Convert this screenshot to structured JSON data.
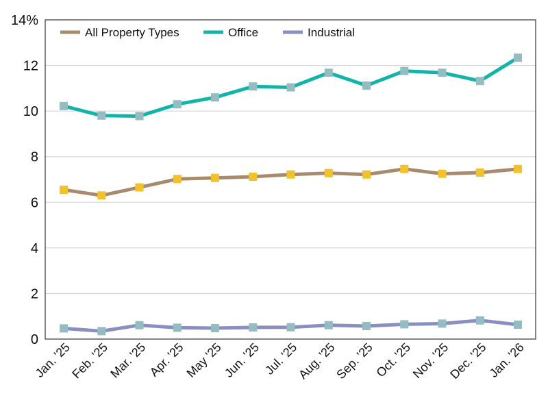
{
  "chart_data": {
    "type": "line",
    "categories": [
      "Jan. '25",
      "Feb. '25",
      "Mar. '25",
      "Apr. '25",
      "May '25",
      "Jun. '25",
      "Jul. '25",
      "Aug. '25",
      "Sep. '25",
      "Oct. '25",
      "Nov. '25",
      "Dec. '25",
      "Jan. '26"
    ],
    "y_ticks": [
      "0",
      "2",
      "4",
      "6",
      "8",
      "10",
      "12",
      "14%"
    ],
    "ylim": [
      0,
      14
    ],
    "grid": true,
    "legend_position": "top-left",
    "series": [
      {
        "name": "All Property Types",
        "color": "#a88b6e",
        "marker_color": "#f2c12e",
        "values": [
          6.55,
          6.3,
          6.65,
          7.02,
          7.07,
          7.12,
          7.22,
          7.28,
          7.22,
          7.46,
          7.25,
          7.3,
          7.46
        ]
      },
      {
        "name": "Office",
        "color": "#12b3a8",
        "marker_color": "#95bcc0",
        "values": [
          10.22,
          9.8,
          9.78,
          10.3,
          10.6,
          11.08,
          11.04,
          11.68,
          11.12,
          11.76,
          11.68,
          11.32,
          12.34
        ]
      },
      {
        "name": "Industrial",
        "color": "#8a8fc2",
        "marker_color": "#95bcc0",
        "values": [
          0.47,
          0.35,
          0.61,
          0.5,
          0.48,
          0.51,
          0.52,
          0.61,
          0.57,
          0.65,
          0.68,
          0.82,
          0.63
        ]
      }
    ]
  }
}
